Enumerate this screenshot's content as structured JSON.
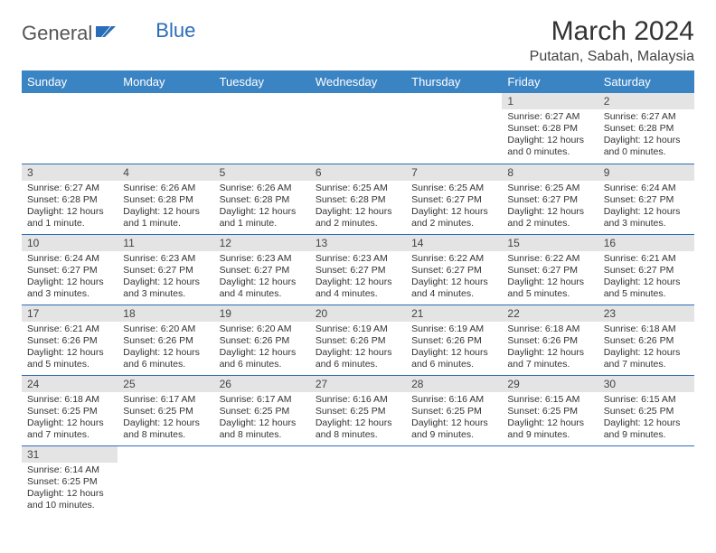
{
  "logo": {
    "text1": "General",
    "text2": "Blue"
  },
  "title": "March 2024",
  "location": "Putatan, Sabah, Malaysia",
  "colors": {
    "header_bg": "#3b84c4",
    "header_text": "#ffffff",
    "daynum_bg": "#e4e4e4",
    "row_border": "#2a6db9",
    "body_text": "#333333",
    "logo_accent": "#2a6db9"
  },
  "calendar": {
    "day_headers": [
      "Sunday",
      "Monday",
      "Tuesday",
      "Wednesday",
      "Thursday",
      "Friday",
      "Saturday"
    ],
    "first_weekday_index": 5,
    "days": [
      {
        "n": 1,
        "sunrise": "6:27 AM",
        "sunset": "6:28 PM",
        "day_h": 12,
        "day_m": 0
      },
      {
        "n": 2,
        "sunrise": "6:27 AM",
        "sunset": "6:28 PM",
        "day_h": 12,
        "day_m": 0
      },
      {
        "n": 3,
        "sunrise": "6:27 AM",
        "sunset": "6:28 PM",
        "day_h": 12,
        "day_m": 1
      },
      {
        "n": 4,
        "sunrise": "6:26 AM",
        "sunset": "6:28 PM",
        "day_h": 12,
        "day_m": 1
      },
      {
        "n": 5,
        "sunrise": "6:26 AM",
        "sunset": "6:28 PM",
        "day_h": 12,
        "day_m": 1
      },
      {
        "n": 6,
        "sunrise": "6:25 AM",
        "sunset": "6:28 PM",
        "day_h": 12,
        "day_m": 2
      },
      {
        "n": 7,
        "sunrise": "6:25 AM",
        "sunset": "6:27 PM",
        "day_h": 12,
        "day_m": 2
      },
      {
        "n": 8,
        "sunrise": "6:25 AM",
        "sunset": "6:27 PM",
        "day_h": 12,
        "day_m": 2
      },
      {
        "n": 9,
        "sunrise": "6:24 AM",
        "sunset": "6:27 PM",
        "day_h": 12,
        "day_m": 3
      },
      {
        "n": 10,
        "sunrise": "6:24 AM",
        "sunset": "6:27 PM",
        "day_h": 12,
        "day_m": 3
      },
      {
        "n": 11,
        "sunrise": "6:23 AM",
        "sunset": "6:27 PM",
        "day_h": 12,
        "day_m": 3
      },
      {
        "n": 12,
        "sunrise": "6:23 AM",
        "sunset": "6:27 PM",
        "day_h": 12,
        "day_m": 4
      },
      {
        "n": 13,
        "sunrise": "6:23 AM",
        "sunset": "6:27 PM",
        "day_h": 12,
        "day_m": 4
      },
      {
        "n": 14,
        "sunrise": "6:22 AM",
        "sunset": "6:27 PM",
        "day_h": 12,
        "day_m": 4
      },
      {
        "n": 15,
        "sunrise": "6:22 AM",
        "sunset": "6:27 PM",
        "day_h": 12,
        "day_m": 5
      },
      {
        "n": 16,
        "sunrise": "6:21 AM",
        "sunset": "6:27 PM",
        "day_h": 12,
        "day_m": 5
      },
      {
        "n": 17,
        "sunrise": "6:21 AM",
        "sunset": "6:26 PM",
        "day_h": 12,
        "day_m": 5
      },
      {
        "n": 18,
        "sunrise": "6:20 AM",
        "sunset": "6:26 PM",
        "day_h": 12,
        "day_m": 6
      },
      {
        "n": 19,
        "sunrise": "6:20 AM",
        "sunset": "6:26 PM",
        "day_h": 12,
        "day_m": 6
      },
      {
        "n": 20,
        "sunrise": "6:19 AM",
        "sunset": "6:26 PM",
        "day_h": 12,
        "day_m": 6
      },
      {
        "n": 21,
        "sunrise": "6:19 AM",
        "sunset": "6:26 PM",
        "day_h": 12,
        "day_m": 6
      },
      {
        "n": 22,
        "sunrise": "6:18 AM",
        "sunset": "6:26 PM",
        "day_h": 12,
        "day_m": 7
      },
      {
        "n": 23,
        "sunrise": "6:18 AM",
        "sunset": "6:26 PM",
        "day_h": 12,
        "day_m": 7
      },
      {
        "n": 24,
        "sunrise": "6:18 AM",
        "sunset": "6:25 PM",
        "day_h": 12,
        "day_m": 7
      },
      {
        "n": 25,
        "sunrise": "6:17 AM",
        "sunset": "6:25 PM",
        "day_h": 12,
        "day_m": 8
      },
      {
        "n": 26,
        "sunrise": "6:17 AM",
        "sunset": "6:25 PM",
        "day_h": 12,
        "day_m": 8
      },
      {
        "n": 27,
        "sunrise": "6:16 AM",
        "sunset": "6:25 PM",
        "day_h": 12,
        "day_m": 8
      },
      {
        "n": 28,
        "sunrise": "6:16 AM",
        "sunset": "6:25 PM",
        "day_h": 12,
        "day_m": 9
      },
      {
        "n": 29,
        "sunrise": "6:15 AM",
        "sunset": "6:25 PM",
        "day_h": 12,
        "day_m": 9
      },
      {
        "n": 30,
        "sunrise": "6:15 AM",
        "sunset": "6:25 PM",
        "day_h": 12,
        "day_m": 9
      },
      {
        "n": 31,
        "sunrise": "6:14 AM",
        "sunset": "6:25 PM",
        "day_h": 12,
        "day_m": 10
      }
    ],
    "labels": {
      "sunrise": "Sunrise:",
      "sunset": "Sunset:",
      "daylight_prefix": "Daylight:",
      "hours_word": "hours",
      "and_word": "and",
      "minute_word": "minute",
      "minutes_word": "minutes"
    }
  }
}
